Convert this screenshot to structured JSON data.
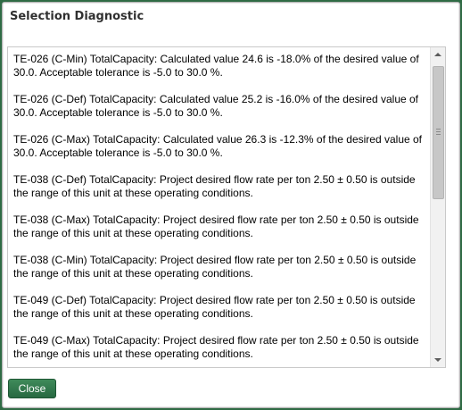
{
  "dialog": {
    "title": "Selection Diagnostic",
    "messages": [
      "TE-026 (C-Min) TotalCapacity: Calculated value 24.6 is -18.0% of the desired value of 30.0. Acceptable tolerance is -5.0 to 30.0 %.",
      "TE-026 (C-Def) TotalCapacity: Calculated value 25.2 is -16.0% of the desired value of 30.0. Acceptable tolerance is -5.0 to 30.0 %.",
      "TE-026 (C-Max) TotalCapacity: Calculated value 26.3 is -12.3% of the desired value of 30.0. Acceptable tolerance is -5.0 to 30.0 %.",
      "TE-038 (C-Def) TotalCapacity: Project desired flow rate per ton 2.50 ± 0.50 is outside the range of this unit at these operating conditions.",
      "TE-038 (C-Max) TotalCapacity: Project desired flow rate per ton 2.50 ± 0.50 is outside the range of this unit at these operating conditions.",
      "TE-038 (C-Min) TotalCapacity: Project desired flow rate per ton 2.50 ± 0.50 is outside the range of this unit at these operating conditions.",
      "TE-049 (C-Def) TotalCapacity: Project desired flow rate per ton 2.50 ± 0.50 is outside the range of this unit at these operating conditions.",
      "TE-049 (C-Max) TotalCapacity: Project desired flow rate per ton 2.50 ± 0.50 is outside the range of this unit at these operating conditions."
    ],
    "close_label": "Close"
  },
  "colors": {
    "accent": "#2f6b44",
    "button": "#2f7a4c"
  },
  "icons": {
    "scroll_up": "arrow-up-icon",
    "scroll_down": "arrow-down-icon"
  }
}
